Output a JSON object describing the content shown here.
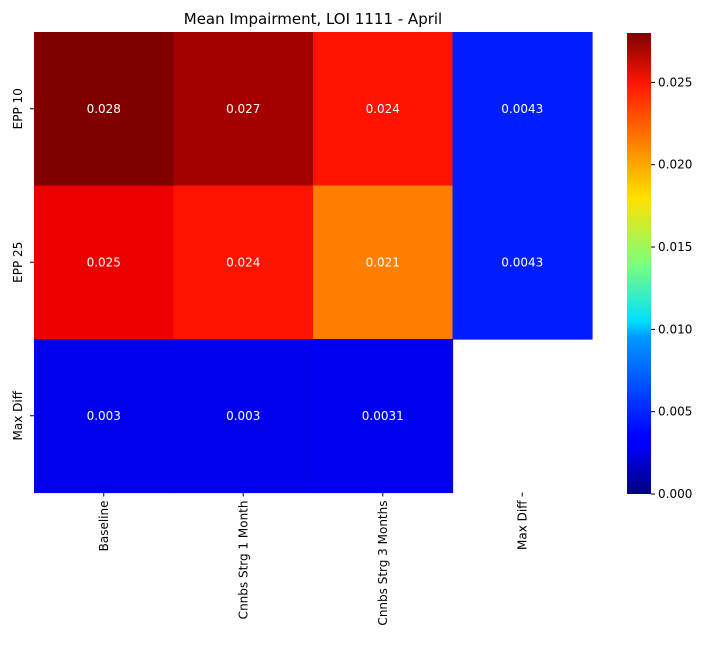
{
  "chart_data": {
    "type": "heatmap",
    "title": "Mean Impairment, LOI 1111 - April",
    "rows": [
      "EPP 10",
      "EPP 25",
      "Max Diff"
    ],
    "columns": [
      "Baseline",
      "Cnnbs Strg 1 Month",
      "Cnnbs Strg 3 Months",
      "Max Diff"
    ],
    "values": [
      [
        0.028,
        0.027,
        0.024,
        0.0043
      ],
      [
        0.025,
        0.024,
        0.021,
        0.0043
      ],
      [
        0.003,
        0.003,
        0.0031,
        null
      ]
    ],
    "annotations": [
      [
        "0.028",
        "0.027",
        "0.024",
        "0.0043"
      ],
      [
        "0.025",
        "0.024",
        "0.021",
        "0.0043"
      ],
      [
        "0.003",
        "0.003",
        "0.0031",
        ""
      ]
    ],
    "colormap": "jet",
    "colorbar": {
      "min": 0.0,
      "max": 0.028,
      "ticks": [
        0.0,
        0.005,
        0.01,
        0.015,
        0.02,
        0.025
      ],
      "tick_labels": [
        "0.000",
        "0.005",
        "0.010",
        "0.015",
        "0.020",
        "0.025"
      ]
    },
    "annotation_color": "#ffffff"
  }
}
